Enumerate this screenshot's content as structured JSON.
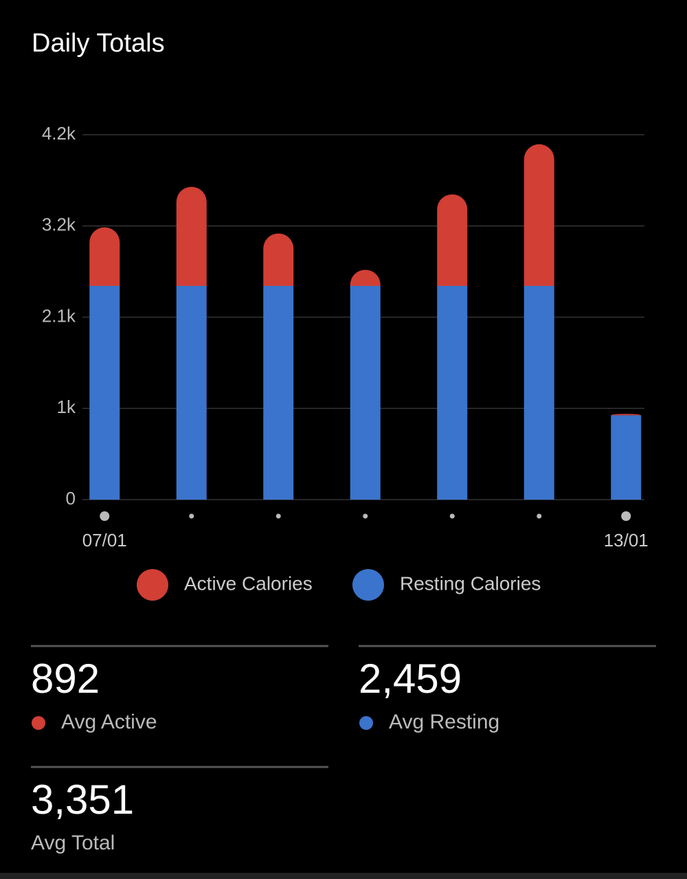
{
  "chart_data": {
    "type": "stacked_bar",
    "title": "Daily Totals",
    "categories": [
      "07/01",
      null,
      null,
      null,
      null,
      null,
      "13/01"
    ],
    "series": [
      {
        "name": "Resting Calories",
        "color": "#3b74cc",
        "values": [
          2460,
          2460,
          2460,
          2460,
          2460,
          2460,
          971
        ]
      },
      {
        "name": "Active Calories",
        "color": "#d13f35",
        "values": [
          674,
          1140,
          603,
          185,
          1053,
          1630,
          16
        ]
      }
    ],
    "legend_order": [
      1,
      0
    ],
    "ylim": [
      0,
      4200
    ],
    "yticks": [
      0,
      {
        "value": 1050,
        "label": "1k"
      },
      {
        "value": 2100,
        "label": "2.1k"
      },
      {
        "value": 3150,
        "label": "3.2k"
      },
      {
        "value": 4200,
        "label": "4.2k"
      }
    ],
    "grid": true
  },
  "stats": [
    {
      "value": "892",
      "label": "Avg Active",
      "color": "#d13f35"
    },
    {
      "value": "2,459",
      "label": "Avg Resting",
      "color": "#3b74cc"
    },
    {
      "value": "3,351",
      "label": "Avg Total"
    }
  ]
}
